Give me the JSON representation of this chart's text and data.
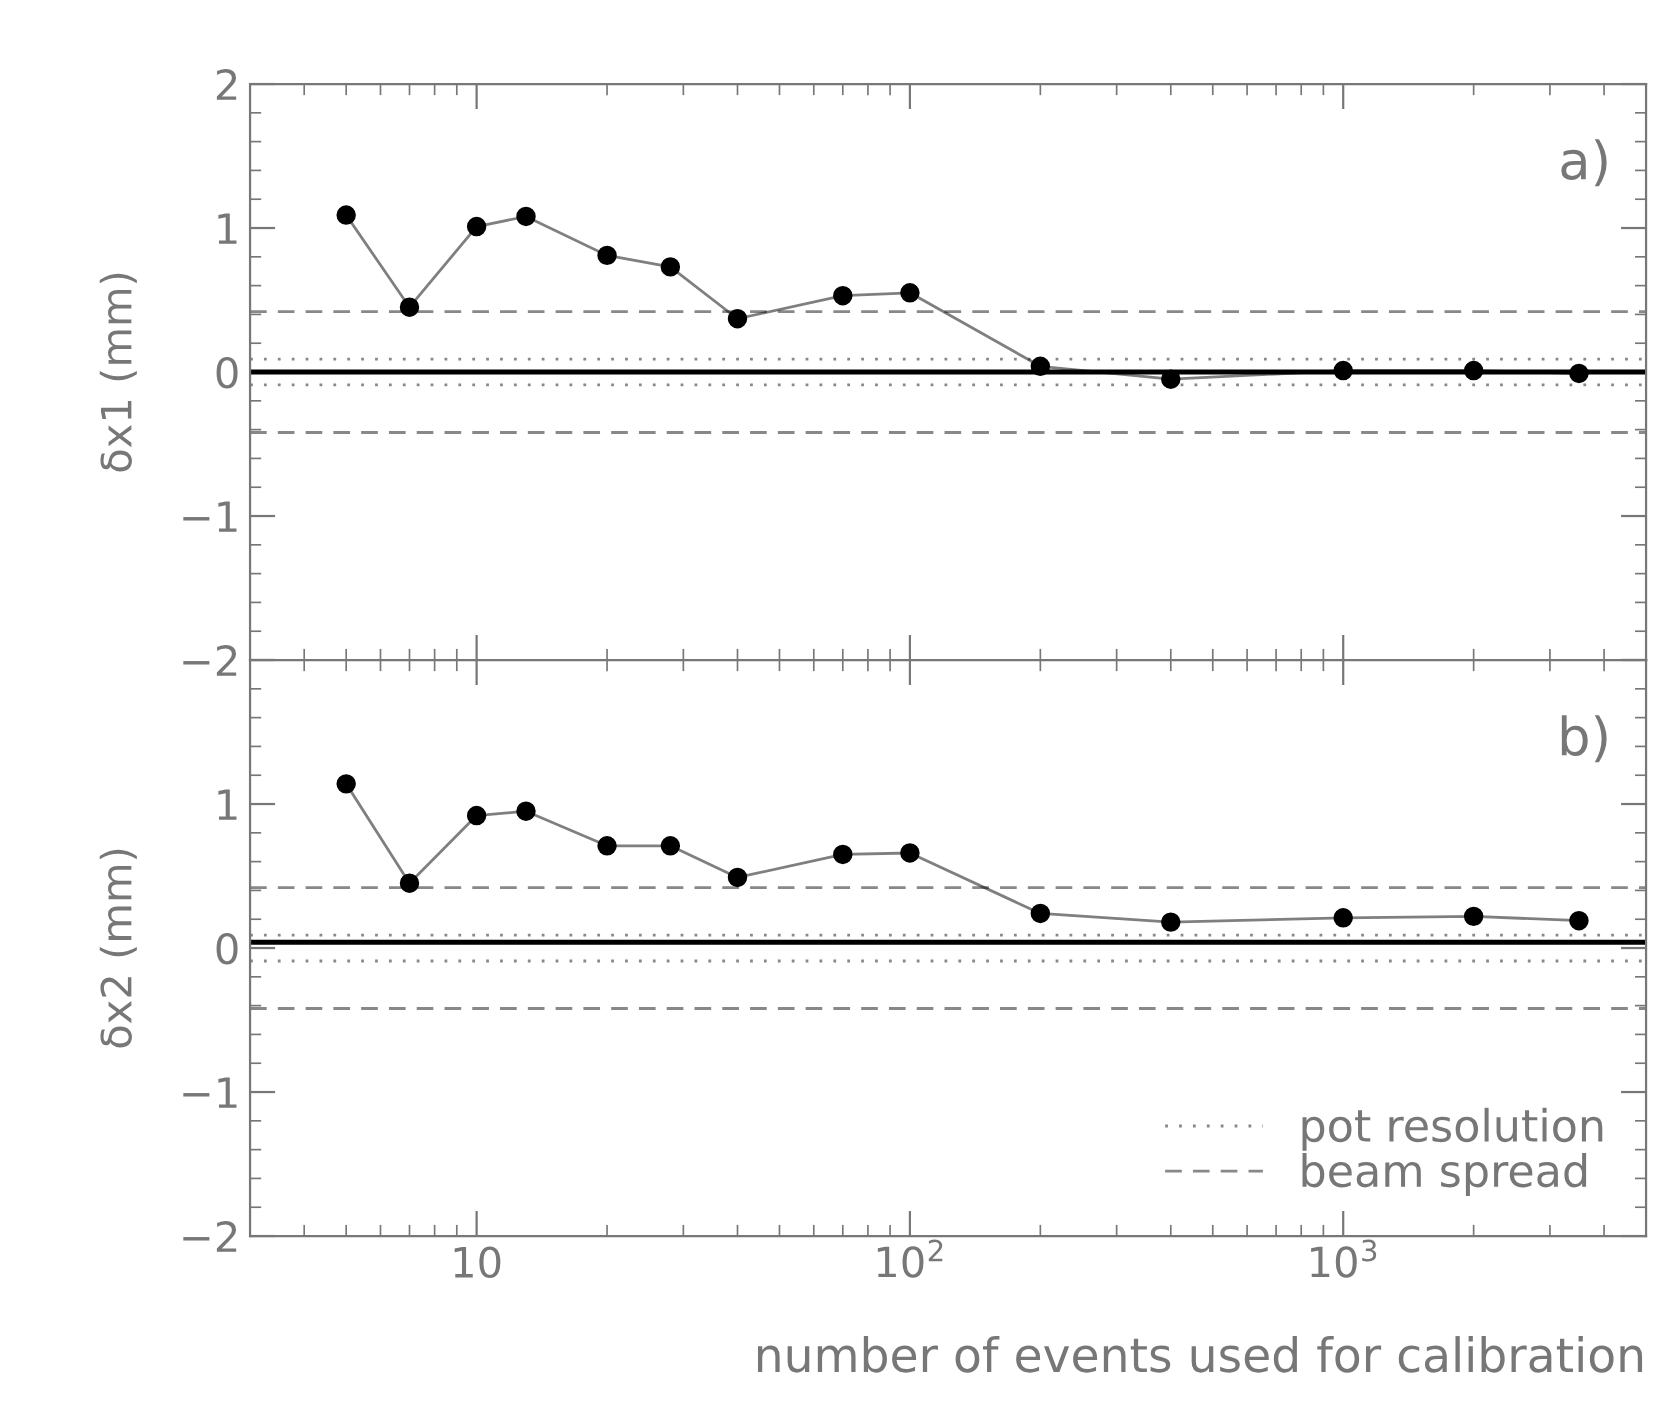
{
  "chart_data": [
    {
      "type": "line",
      "ylabel": "δx1 (mm)",
      "annotations": [
        "a)"
      ],
      "log": "x",
      "marker": "circle",
      "line_style": "solid",
      "grid": false,
      "legend": false,
      "tick_labels": "y",
      "xlim": [
        3,
        5000
      ],
      "xticks": [
        {
          "value": 10,
          "label": null
        },
        {
          "value": 100,
          "label": null
        },
        {
          "value": 1000,
          "label": null
        }
      ],
      "ylim": [
        -2,
        2
      ],
      "yticks": [
        {
          "value": -2,
          "label": "−2"
        },
        {
          "value": -1,
          "label": "−1"
        },
        0,
        1,
        2
      ],
      "x": [
        5,
        7,
        10,
        13,
        20,
        28,
        40,
        70,
        100,
        200,
        400,
        1000,
        2000,
        3500
      ],
      "series": [
        {
          "color": "#000000",
          "values": [
            1.09,
            0.45,
            1.01,
            1.08,
            0.81,
            0.73,
            0.37,
            0.53,
            0.55,
            0.04,
            -0.05,
            0.01,
            0.01,
            -0.01
          ]
        }
      ],
      "ref_lines": [
        {
          "axis": "y",
          "value": 0,
          "color": "#000000",
          "line_style": "solid"
        },
        {
          "axis": "y",
          "value": 0.09,
          "color": "#888888",
          "line_style": "dotted"
        },
        {
          "axis": "y",
          "value": -0.09,
          "color": "#888888",
          "line_style": "dotted"
        },
        {
          "axis": "y",
          "value": 0.42,
          "color": "#888888",
          "line_style": "dashed"
        },
        {
          "axis": "y",
          "value": -0.42,
          "color": "#888888",
          "line_style": "dashed"
        }
      ]
    },
    {
      "type": "line",
      "ylabel": "δx2 (mm)",
      "xlabel": "number of events used for calibration",
      "annotations": [
        "b)"
      ],
      "log": "x",
      "marker": "circle",
      "line_style": "solid",
      "grid": false,
      "legend": "bottom right",
      "xlim": [
        3,
        5000
      ],
      "xticks": [
        {
          "value": 10,
          "label": "10"
        },
        {
          "value": 100,
          "label": "10$^{2}$"
        },
        {
          "value": 1000,
          "label": "10$^{3}$"
        }
      ],
      "ylim": [
        -2,
        2
      ],
      "yticks": [
        {
          "value": -2,
          "label": "−2"
        },
        {
          "value": -1,
          "label": "−1"
        },
        0,
        1,
        {
          "value": 2,
          "label": null
        }
      ],
      "x": [
        5,
        7,
        10,
        13,
        20,
        28,
        40,
        70,
        100,
        200,
        400,
        1000,
        2000,
        3500
      ],
      "series": [
        {
          "color": "#000000",
          "values": [
            1.14,
            0.45,
            0.92,
            0.95,
            0.71,
            0.71,
            0.49,
            0.65,
            0.66,
            0.24,
            0.18,
            0.21,
            0.22,
            0.19
          ]
        }
      ],
      "ref_lines": [
        {
          "axis": "y",
          "value": 0.04,
          "color": "#000000",
          "line_style": "solid"
        },
        {
          "axis": "y",
          "value": 0.09,
          "color": "#888888",
          "line_style": "dotted",
          "label": "pot resolution"
        },
        {
          "axis": "y",
          "value": -0.09,
          "color": "#888888",
          "line_style": "dotted"
        },
        {
          "axis": "y",
          "value": 0.42,
          "color": "#888888",
          "line_style": "dashed",
          "label": "beam spread"
        },
        {
          "axis": "y",
          "value": -0.42,
          "color": "#888888",
          "line_style": "dashed"
        }
      ]
    }
  ]
}
